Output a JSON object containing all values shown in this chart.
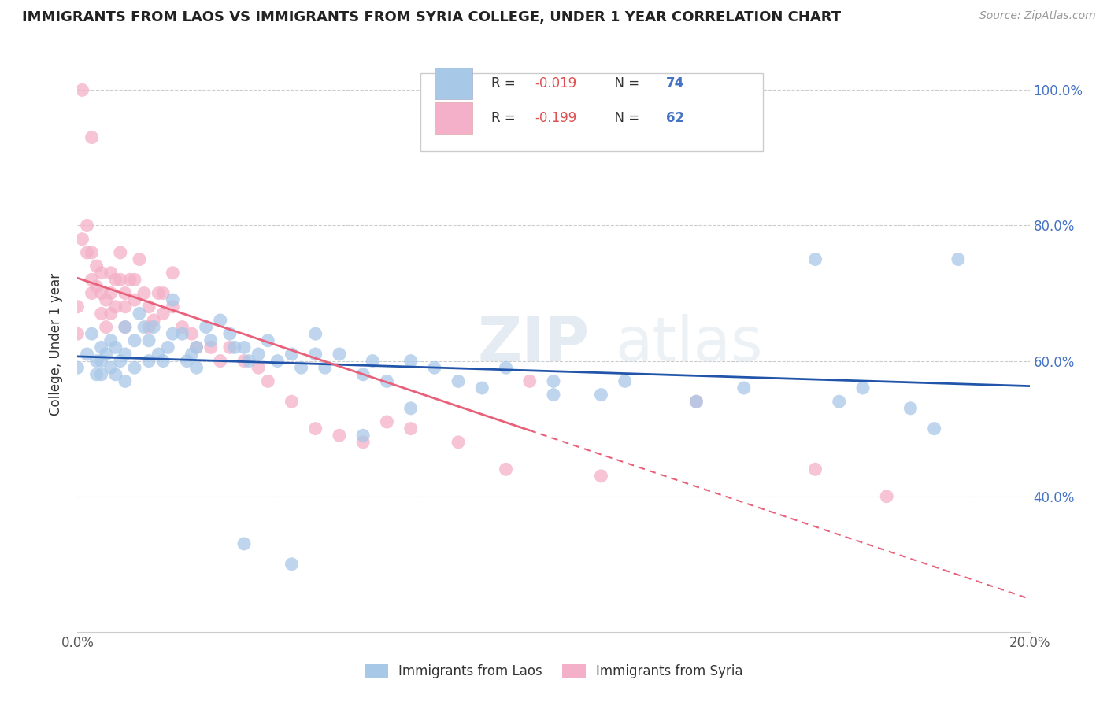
{
  "title": "IMMIGRANTS FROM LAOS VS IMMIGRANTS FROM SYRIA COLLEGE, UNDER 1 YEAR CORRELATION CHART",
  "source": "Source: ZipAtlas.com",
  "ylabel": "College, Under 1 year",
  "xlim": [
    0.0,
    0.2
  ],
  "ylim": [
    0.2,
    1.05
  ],
  "legend_label1": "Immigrants from Laos",
  "legend_label2": "Immigrants from Syria",
  "watermark_zip": "ZIP",
  "watermark_atlas": "atlas",
  "laos_color": "#a8c8e8",
  "syria_color": "#f4b0c8",
  "laos_line_color": "#2255aa",
  "syria_line_color": "#e8607a",
  "laos_legend_color": "#a8c8e8",
  "syria_legend_color": "#f4b0c8",
  "laos_x": [
    0.0,
    0.002,
    0.003,
    0.004,
    0.004,
    0.005,
    0.005,
    0.005,
    0.006,
    0.007,
    0.007,
    0.008,
    0.008,
    0.009,
    0.01,
    0.01,
    0.01,
    0.012,
    0.012,
    0.013,
    0.014,
    0.015,
    0.015,
    0.016,
    0.017,
    0.018,
    0.019,
    0.02,
    0.02,
    0.022,
    0.023,
    0.024,
    0.025,
    0.025,
    0.027,
    0.028,
    0.03,
    0.032,
    0.033,
    0.035,
    0.036,
    0.038,
    0.04,
    0.042,
    0.045,
    0.047,
    0.05,
    0.05,
    0.052,
    0.055,
    0.06,
    0.062,
    0.065,
    0.07,
    0.075,
    0.08,
    0.085,
    0.09,
    0.1,
    0.1,
    0.11,
    0.115,
    0.13,
    0.14,
    0.155,
    0.165,
    0.175,
    0.185,
    0.06,
    0.07,
    0.16,
    0.18,
    0.035,
    0.045
  ],
  "laos_y": [
    0.59,
    0.61,
    0.64,
    0.6,
    0.58,
    0.62,
    0.6,
    0.58,
    0.61,
    0.63,
    0.59,
    0.62,
    0.58,
    0.6,
    0.65,
    0.61,
    0.57,
    0.63,
    0.59,
    0.67,
    0.65,
    0.63,
    0.6,
    0.65,
    0.61,
    0.6,
    0.62,
    0.69,
    0.64,
    0.64,
    0.6,
    0.61,
    0.62,
    0.59,
    0.65,
    0.63,
    0.66,
    0.64,
    0.62,
    0.62,
    0.6,
    0.61,
    0.63,
    0.6,
    0.61,
    0.59,
    0.64,
    0.61,
    0.59,
    0.61,
    0.58,
    0.6,
    0.57,
    0.6,
    0.59,
    0.57,
    0.56,
    0.59,
    0.57,
    0.55,
    0.55,
    0.57,
    0.54,
    0.56,
    0.75,
    0.56,
    0.53,
    0.75,
    0.49,
    0.53,
    0.54,
    0.5,
    0.33,
    0.3
  ],
  "syria_x": [
    0.0,
    0.0,
    0.001,
    0.002,
    0.002,
    0.003,
    0.003,
    0.003,
    0.004,
    0.004,
    0.005,
    0.005,
    0.005,
    0.006,
    0.006,
    0.007,
    0.007,
    0.007,
    0.008,
    0.008,
    0.009,
    0.009,
    0.01,
    0.01,
    0.01,
    0.011,
    0.012,
    0.012,
    0.013,
    0.014,
    0.015,
    0.015,
    0.016,
    0.017,
    0.018,
    0.018,
    0.02,
    0.02,
    0.022,
    0.024,
    0.025,
    0.028,
    0.03,
    0.032,
    0.035,
    0.038,
    0.04,
    0.045,
    0.05,
    0.055,
    0.06,
    0.065,
    0.07,
    0.08,
    0.09,
    0.095,
    0.11,
    0.13,
    0.155,
    0.17,
    0.001,
    0.003
  ],
  "syria_y": [
    0.68,
    0.64,
    0.78,
    0.8,
    0.76,
    0.76,
    0.72,
    0.7,
    0.74,
    0.71,
    0.73,
    0.7,
    0.67,
    0.69,
    0.65,
    0.73,
    0.7,
    0.67,
    0.72,
    0.68,
    0.76,
    0.72,
    0.7,
    0.68,
    0.65,
    0.72,
    0.72,
    0.69,
    0.75,
    0.7,
    0.68,
    0.65,
    0.66,
    0.7,
    0.7,
    0.67,
    0.73,
    0.68,
    0.65,
    0.64,
    0.62,
    0.62,
    0.6,
    0.62,
    0.6,
    0.59,
    0.57,
    0.54,
    0.5,
    0.49,
    0.48,
    0.51,
    0.5,
    0.48,
    0.44,
    0.57,
    0.43,
    0.54,
    0.44,
    0.4,
    1.0,
    0.93
  ]
}
